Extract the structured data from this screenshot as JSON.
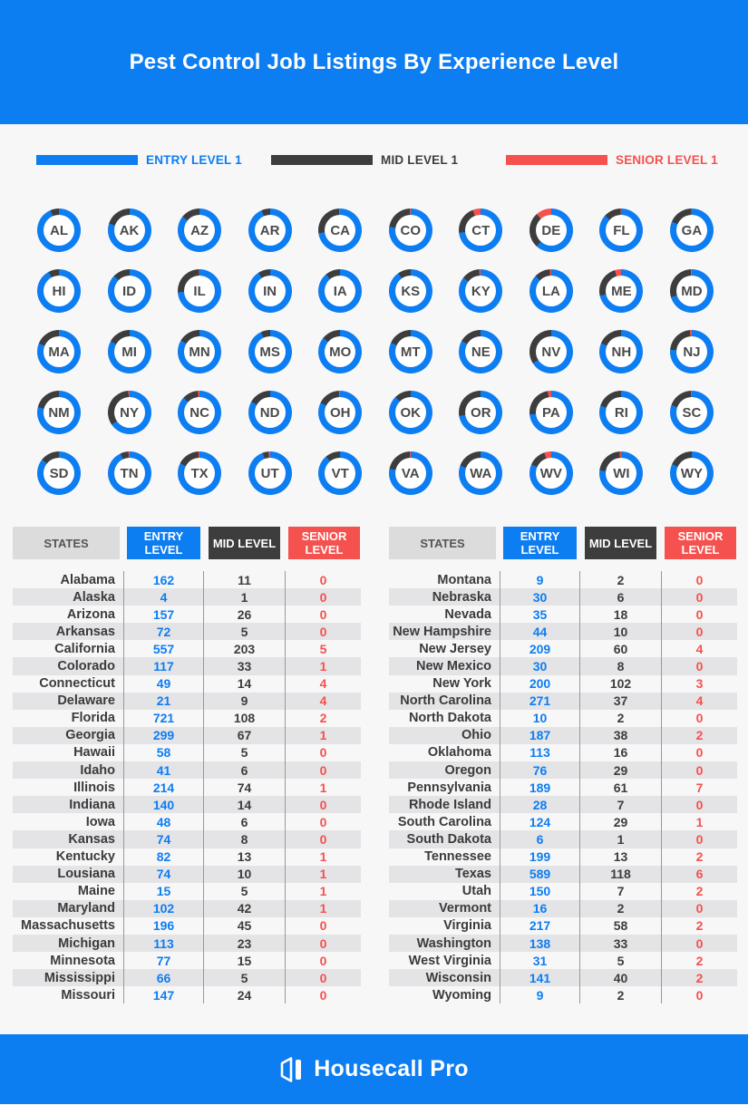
{
  "title": "Pest Control Job Listings By Experience Level",
  "legend": {
    "entry": {
      "label": "ENTRY LEVEL 1",
      "color": "#0d7df2"
    },
    "mid": {
      "label": "MID LEVEL 1",
      "color": "#3d3d3d"
    },
    "senior": {
      "label": "SENIOR LEVEL 1",
      "color": "#f5514f"
    }
  },
  "tables": {
    "headers": {
      "states": "STATES",
      "entry": "ENTRY LEVEL",
      "mid": "MID LEVEL",
      "senior": "SENIOR LEVEL"
    }
  },
  "footer": {
    "brand": "Housecall Pro"
  },
  "colors": {
    "accent_blue": "#0d7df2",
    "mid_dark": "#3d3d3d",
    "senior_red": "#f5514f",
    "page_bg": "#f7f7f8",
    "row_stripe": "#e4e4e6",
    "states_header_gray": "#dcdcdc"
  },
  "chart_data": {
    "type": "donut",
    "title": "Pest Control Job Listings By Experience Level",
    "description": "50 per-state donut rings; ring split clockwise from 12 o'clock into entry (blue), mid (dark), senior (red) share of listings. Same values listed in the two tables below.",
    "series_labels": [
      "Entry Level",
      "Mid Level",
      "Senior Level"
    ],
    "series_colors": [
      "#0d7df2",
      "#3d3d3d",
      "#f5514f"
    ],
    "legend_position": "top",
    "states": [
      {
        "name": "Alabama",
        "abbr": "AL",
        "entry": 162,
        "mid": 11,
        "senior": 0
      },
      {
        "name": "Alaska",
        "abbr": "AK",
        "entry": 4,
        "mid": 1,
        "senior": 0
      },
      {
        "name": "Arizona",
        "abbr": "AZ",
        "entry": 157,
        "mid": 26,
        "senior": 0
      },
      {
        "name": "Arkansas",
        "abbr": "AR",
        "entry": 72,
        "mid": 5,
        "senior": 0
      },
      {
        "name": "California",
        "abbr": "CA",
        "entry": 557,
        "mid": 203,
        "senior": 5
      },
      {
        "name": "Colorado",
        "abbr": "CO",
        "entry": 117,
        "mid": 33,
        "senior": 1
      },
      {
        "name": "Connecticut",
        "abbr": "CT",
        "entry": 49,
        "mid": 14,
        "senior": 4
      },
      {
        "name": "Delaware",
        "abbr": "DE",
        "entry": 21,
        "mid": 9,
        "senior": 4
      },
      {
        "name": "Florida",
        "abbr": "FL",
        "entry": 721,
        "mid": 108,
        "senior": 2
      },
      {
        "name": "Georgia",
        "abbr": "GA",
        "entry": 299,
        "mid": 67,
        "senior": 1
      },
      {
        "name": "Hawaii",
        "abbr": "HI",
        "entry": 58,
        "mid": 5,
        "senior": 0
      },
      {
        "name": "Idaho",
        "abbr": "ID",
        "entry": 41,
        "mid": 6,
        "senior": 0
      },
      {
        "name": "Illinois",
        "abbr": "IL",
        "entry": 214,
        "mid": 74,
        "senior": 1
      },
      {
        "name": "Indiana",
        "abbr": "IN",
        "entry": 140,
        "mid": 14,
        "senior": 0
      },
      {
        "name": "Iowa",
        "abbr": "IA",
        "entry": 48,
        "mid": 6,
        "senior": 0
      },
      {
        "name": "Kansas",
        "abbr": "KS",
        "entry": 74,
        "mid": 8,
        "senior": 0
      },
      {
        "name": "Kentucky",
        "abbr": "KY",
        "entry": 82,
        "mid": 13,
        "senior": 1
      },
      {
        "name": "Lousiana",
        "abbr": "LA",
        "entry": 74,
        "mid": 10,
        "senior": 1
      },
      {
        "name": "Maine",
        "abbr": "ME",
        "entry": 15,
        "mid": 5,
        "senior": 1
      },
      {
        "name": "Maryland",
        "abbr": "MD",
        "entry": 102,
        "mid": 42,
        "senior": 1
      },
      {
        "name": "Massachusetts",
        "abbr": "MA",
        "entry": 196,
        "mid": 45,
        "senior": 0
      },
      {
        "name": "Michigan",
        "abbr": "MI",
        "entry": 113,
        "mid": 23,
        "senior": 0
      },
      {
        "name": "Minnesota",
        "abbr": "MN",
        "entry": 77,
        "mid": 15,
        "senior": 0
      },
      {
        "name": "Mississippi",
        "abbr": "MS",
        "entry": 66,
        "mid": 5,
        "senior": 0
      },
      {
        "name": "Missouri",
        "abbr": "MO",
        "entry": 147,
        "mid": 24,
        "senior": 0
      },
      {
        "name": "Montana",
        "abbr": "MT",
        "entry": 9,
        "mid": 2,
        "senior": 0
      },
      {
        "name": "Nebraska",
        "abbr": "NE",
        "entry": 30,
        "mid": 6,
        "senior": 0
      },
      {
        "name": "Nevada",
        "abbr": "NV",
        "entry": 35,
        "mid": 18,
        "senior": 0
      },
      {
        "name": "New Hampshire",
        "abbr": "NH",
        "entry": 44,
        "mid": 10,
        "senior": 0
      },
      {
        "name": "New Jersey",
        "abbr": "NJ",
        "entry": 209,
        "mid": 60,
        "senior": 4
      },
      {
        "name": "New Mexico",
        "abbr": "NM",
        "entry": 30,
        "mid": 8,
        "senior": 0
      },
      {
        "name": "New York",
        "abbr": "NY",
        "entry": 200,
        "mid": 102,
        "senior": 3
      },
      {
        "name": "North Carolina",
        "abbr": "NC",
        "entry": 271,
        "mid": 37,
        "senior": 4
      },
      {
        "name": "North Dakota",
        "abbr": "ND",
        "entry": 10,
        "mid": 2,
        "senior": 0
      },
      {
        "name": "Ohio",
        "abbr": "OH",
        "entry": 187,
        "mid": 38,
        "senior": 2
      },
      {
        "name": "Oklahoma",
        "abbr": "OK",
        "entry": 113,
        "mid": 16,
        "senior": 0
      },
      {
        "name": "Oregon",
        "abbr": "OR",
        "entry": 76,
        "mid": 29,
        "senior": 0
      },
      {
        "name": "Pennsylvania",
        "abbr": "PA",
        "entry": 189,
        "mid": 61,
        "senior": 7
      },
      {
        "name": "Rhode Island",
        "abbr": "RI",
        "entry": 28,
        "mid": 7,
        "senior": 0
      },
      {
        "name": "South Carolina",
        "abbr": "SC",
        "entry": 124,
        "mid": 29,
        "senior": 1
      },
      {
        "name": "South Dakota",
        "abbr": "SD",
        "entry": 6,
        "mid": 1,
        "senior": 0
      },
      {
        "name": "Tennessee",
        "abbr": "TN",
        "entry": 199,
        "mid": 13,
        "senior": 2
      },
      {
        "name": "Texas",
        "abbr": "TX",
        "entry": 589,
        "mid": 118,
        "senior": 6
      },
      {
        "name": "Utah",
        "abbr": "UT",
        "entry": 150,
        "mid": 7,
        "senior": 2
      },
      {
        "name": "Vermont",
        "abbr": "VT",
        "entry": 16,
        "mid": 2,
        "senior": 0
      },
      {
        "name": "Virginia",
        "abbr": "VA",
        "entry": 217,
        "mid": 58,
        "senior": 2
      },
      {
        "name": "Washington",
        "abbr": "WA",
        "entry": 138,
        "mid": 33,
        "senior": 0
      },
      {
        "name": "West Virginia",
        "abbr": "WV",
        "entry": 31,
        "mid": 5,
        "senior": 2
      },
      {
        "name": "Wisconsin",
        "abbr": "WI",
        "entry": 141,
        "mid": 40,
        "senior": 2
      },
      {
        "name": "Wyoming",
        "abbr": "WY",
        "entry": 9,
        "mid": 2,
        "senior": 0
      }
    ]
  }
}
